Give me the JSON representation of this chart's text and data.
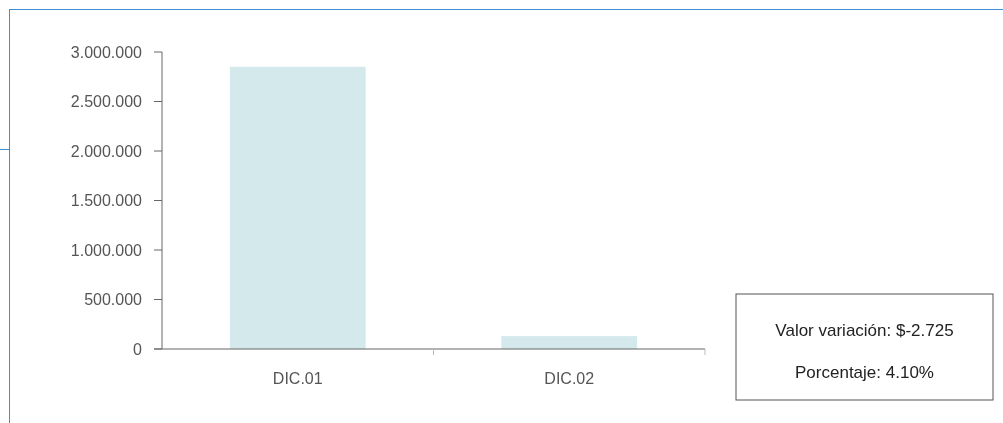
{
  "chart_data": {
    "type": "bar",
    "categories": [
      "DIC.01",
      "DIC.02"
    ],
    "values": [
      2850000,
      130000
    ],
    "color": "#d3e9ec",
    "ylim": [
      0,
      3000000
    ],
    "yticks": [
      {
        "value": 0,
        "label": "0"
      },
      {
        "value": 500000,
        "label": "500.000"
      },
      {
        "value": 1000000,
        "label": "1.000.000"
      },
      {
        "value": 1500000,
        "label": "1.500.000"
      },
      {
        "value": 2000000,
        "label": "2.000.000"
      },
      {
        "value": 2500000,
        "label": "2.500.000"
      },
      {
        "value": 3000000,
        "label": "3.000.000"
      }
    ],
    "grid": false,
    "annotations": [
      "Valor variación: $-2.725",
      "Porcentaje: 4.10%"
    ]
  }
}
